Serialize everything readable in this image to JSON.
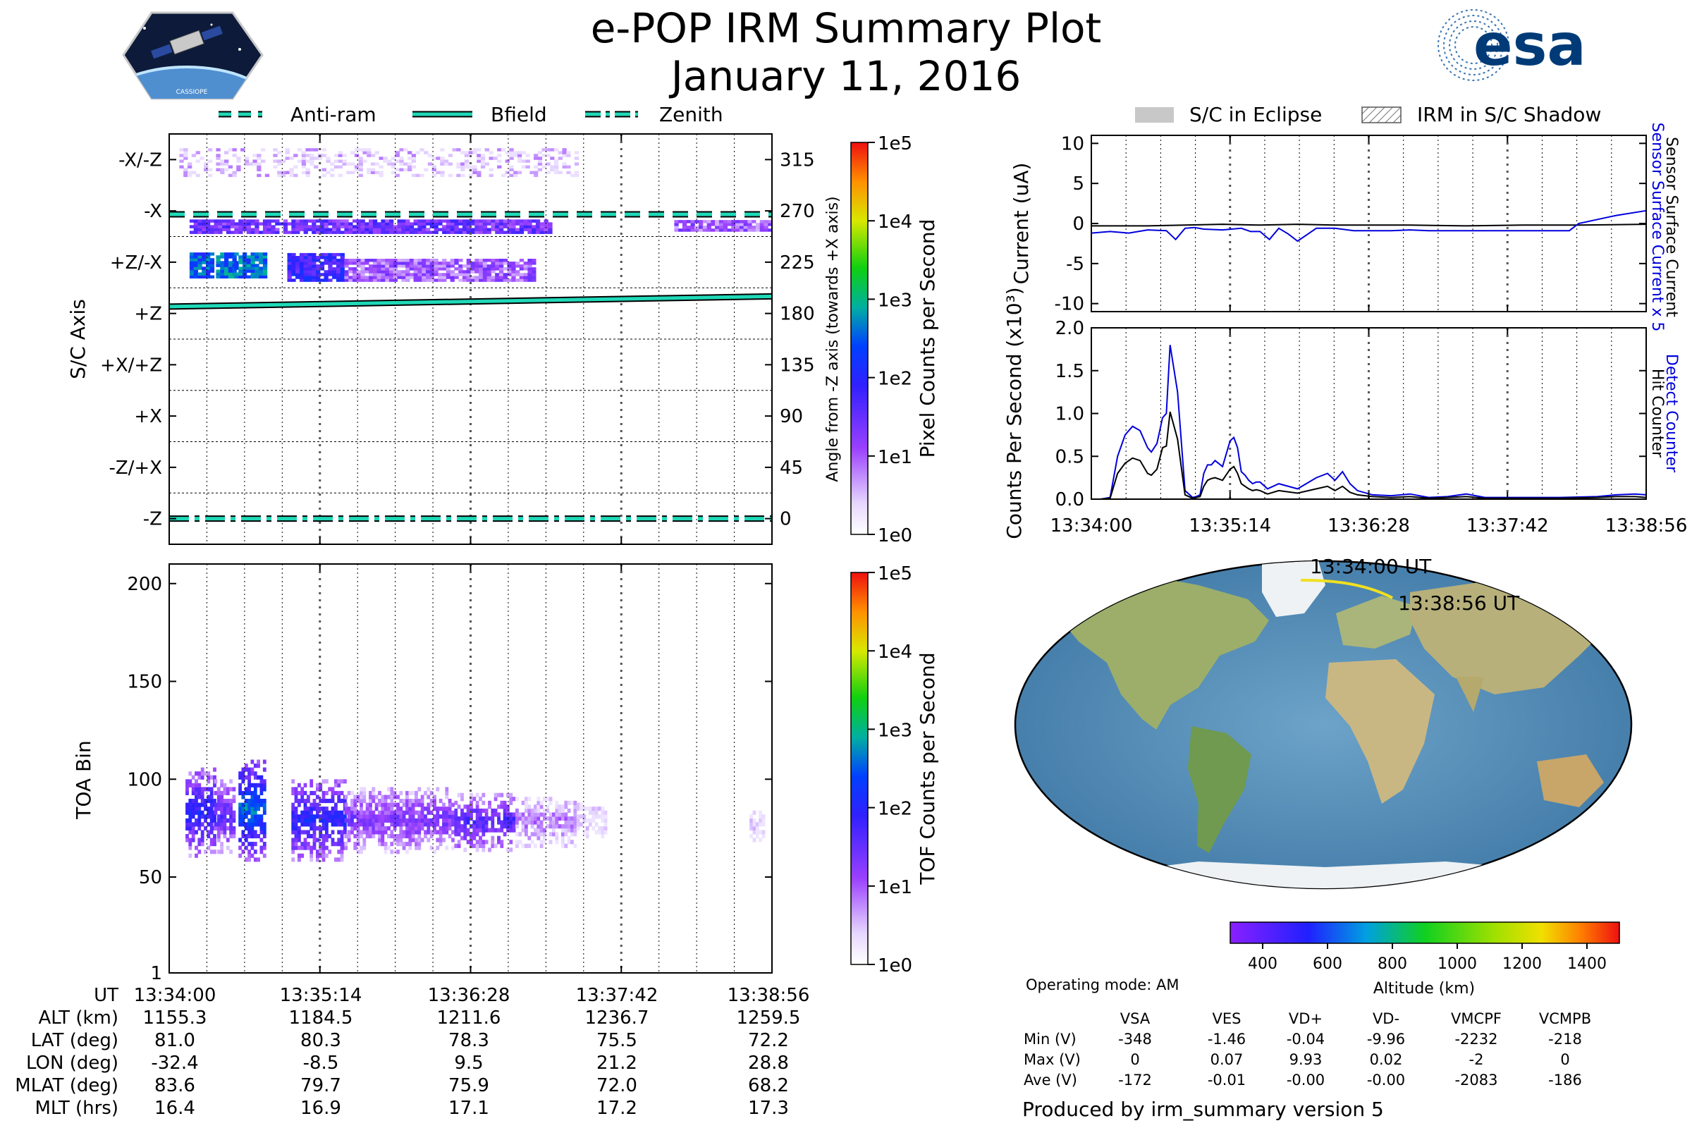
{
  "header": {
    "title": "e-POP IRM Summary Plot",
    "date": "January 11, 2016",
    "esa_logo_text": "esa",
    "cassiope_badge_text": "CASSIOPE"
  },
  "legend_top": {
    "antiram": "Anti-ram",
    "bfield": "Bfield",
    "zenith": "Zenith",
    "eclipse": "S/C in Eclipse",
    "shadow": "IRM in S/C Shadow"
  },
  "colors": {
    "antiram_line": "#1fd9b8",
    "bfield_line": "#1fd9b8",
    "zenith_line": "#1fd9b8",
    "current_black": "#000000",
    "current_blue": "#0000dd",
    "track": "#f0e020"
  },
  "chart_data": [
    {
      "id": "pixel-angle",
      "type": "heatmap",
      "ylabel_left": "S/C Axis",
      "ylabel_right": "Angle from -Z axis (towards +X axis)",
      "axis_labels": [
        "-X/-Z",
        "-X",
        "+Z/-X",
        "+Z",
        "+X/+Z",
        "+X",
        "-Z/+X",
        "-Z"
      ],
      "angle_ticks": [
        "315",
        "270",
        "225",
        "180",
        "135",
        "90",
        "45",
        "0"
      ],
      "angle_range": [
        -22.5,
        337.5
      ],
      "time_range_s": [
        0,
        296
      ],
      "colorbar": {
        "label": "Pixel Counts per Second",
        "scale": "log",
        "ticks": [
          "1e5",
          "1e4",
          "1e3",
          "1e2",
          "1e1",
          "1e0"
        ]
      },
      "antiram_angle": 267,
      "zenith_angle": 0,
      "bfield_angle": [
        186,
        195
      ],
      "blobs": [
        {
          "t0": 10,
          "t1": 188,
          "a0": 250,
          "a1": 262,
          "level": 1.4
        },
        {
          "t0": 248,
          "t1": 296,
          "a0": 252,
          "a1": 262,
          "level": 1.0
        },
        {
          "t0": 10,
          "t1": 22,
          "a0": 211,
          "a1": 232,
          "level": 2.4
        },
        {
          "t0": 23,
          "t1": 32,
          "a0": 211,
          "a1": 232,
          "level": 2.6
        },
        {
          "t0": 32,
          "t1": 47,
          "a0": 211,
          "a1": 232,
          "level": 2.5
        },
        {
          "t0": 58,
          "t1": 86,
          "a0": 208,
          "a1": 232,
          "level": 1.8
        },
        {
          "t0": 86,
          "t1": 180,
          "a0": 208,
          "a1": 228,
          "level": 1.0
        },
        {
          "t0": 5,
          "t1": 200,
          "a0": 300,
          "a1": 325,
          "level": 0.4
        }
      ]
    },
    {
      "id": "tof",
      "type": "heatmap",
      "ylabel": "TOA Bin",
      "y_ticks": [
        1,
        50,
        100,
        150,
        200
      ],
      "y_range": [
        1,
        210
      ],
      "time_range_s": [
        0,
        296
      ],
      "colorbar": {
        "label": "TOF Counts per Second",
        "scale": "log",
        "ticks": [
          "1e5",
          "1e4",
          "1e3",
          "1e2",
          "1e1",
          "1e0"
        ]
      },
      "blobs": [
        {
          "t0": 8,
          "t1": 22,
          "b0": 60,
          "b1": 105,
          "level": 1.7
        },
        {
          "t0": 22,
          "t1": 32,
          "b0": 62,
          "b1": 100,
          "level": 1.3
        },
        {
          "t0": 34,
          "t1": 47,
          "b0": 58,
          "b1": 110,
          "level": 2.2
        },
        {
          "t0": 60,
          "t1": 86,
          "b0": 58,
          "b1": 100,
          "level": 1.7
        },
        {
          "t0": 86,
          "t1": 140,
          "b0": 62,
          "b1": 95,
          "level": 1.1
        },
        {
          "t0": 140,
          "t1": 170,
          "b0": 63,
          "b1": 92,
          "level": 1.4
        },
        {
          "t0": 170,
          "t1": 200,
          "b0": 65,
          "b1": 90,
          "level": 0.7
        },
        {
          "t0": 200,
          "t1": 215,
          "b0": 70,
          "b1": 88,
          "level": 0.4
        },
        {
          "t0": 285,
          "t1": 292,
          "b0": 68,
          "b1": 84,
          "level": 0.3
        }
      ]
    },
    {
      "id": "current",
      "type": "line",
      "ylabel": "Current (uA)",
      "ylim": [
        -11,
        11
      ],
      "yticks": [
        10,
        5,
        0,
        -5,
        -10
      ],
      "time_range_s": [
        0,
        296
      ],
      "right_label_blue": "Sensor Surface Current x 5",
      "right_label_black": "Sensor Surface Current",
      "series": [
        {
          "color": "black",
          "x": [
            0,
            30,
            50,
            70,
            90,
            110,
            130,
            150,
            170,
            200,
            230,
            260,
            296
          ],
          "y": [
            -0.3,
            -0.3,
            -0.2,
            -0.1,
            -0.2,
            -0.1,
            -0.2,
            -0.2,
            -0.2,
            -0.3,
            -0.2,
            -0.2,
            -0.1
          ]
        },
        {
          "color": "blue",
          "x": [
            0,
            10,
            20,
            30,
            40,
            45,
            50,
            55,
            60,
            70,
            80,
            85,
            90,
            95,
            100,
            105,
            110,
            115,
            120,
            130,
            140,
            150,
            160,
            170,
            180,
            200,
            230,
            255,
            260,
            270,
            280,
            296
          ],
          "y": [
            -1.2,
            -1.0,
            -1.2,
            -0.8,
            -0.9,
            -2.0,
            -0.6,
            -0.5,
            -0.7,
            -0.8,
            -0.6,
            -1.0,
            -1.0,
            -2.0,
            -0.6,
            -1.3,
            -2.2,
            -1.4,
            -0.6,
            -0.6,
            -0.9,
            -0.9,
            -0.9,
            -0.8,
            -0.9,
            -0.9,
            -0.9,
            -0.9,
            0.0,
            0.5,
            1.0,
            1.6
          ]
        }
      ]
    },
    {
      "id": "counts",
      "type": "line",
      "ylabel": "Counts Per Second (x10³)",
      "ylim": [
        0,
        2.0
      ],
      "yticks": [
        "2.0",
        "1.5",
        "1.0",
        "0.5",
        "0.0"
      ],
      "x_tick_labels": [
        "13:34:00",
        "13:35:14",
        "13:36:28",
        "13:37:42",
        "13:38:56"
      ],
      "time_range_s": [
        0,
        296
      ],
      "right_label_blue": "Detect Counter",
      "right_label_black": "Hit Counter",
      "series": [
        {
          "color": "blue",
          "x": [
            0,
            5,
            10,
            14,
            18,
            22,
            26,
            30,
            32,
            35,
            38,
            40,
            42,
            46,
            50,
            54,
            56,
            58,
            60,
            62,
            64,
            66,
            70,
            74,
            76,
            78,
            80,
            82,
            84,
            86,
            88,
            90,
            94,
            100,
            110,
            120,
            126,
            130,
            134,
            138,
            142,
            150,
            160,
            170,
            180,
            190,
            200,
            210,
            230,
            250,
            270,
            280,
            290,
            296
          ],
          "y": [
            0,
            0,
            0.02,
            0.5,
            0.75,
            0.85,
            0.8,
            0.6,
            0.55,
            0.65,
            0.95,
            1.0,
            1.8,
            1.25,
            0.1,
            0.02,
            0.03,
            0.05,
            0.3,
            0.4,
            0.4,
            0.45,
            0.38,
            0.68,
            0.72,
            0.6,
            0.32,
            0.28,
            0.22,
            0.18,
            0.2,
            0.2,
            0.12,
            0.18,
            0.12,
            0.25,
            0.3,
            0.22,
            0.32,
            0.18,
            0.1,
            0.05,
            0.04,
            0.06,
            0.02,
            0.03,
            0.06,
            0.02,
            0.02,
            0.02,
            0.03,
            0.05,
            0.06,
            0.05
          ]
        },
        {
          "color": "black",
          "x": [
            0,
            5,
            10,
            14,
            18,
            22,
            26,
            30,
            32,
            35,
            38,
            40,
            42,
            46,
            50,
            54,
            56,
            58,
            60,
            62,
            64,
            66,
            70,
            74,
            76,
            78,
            80,
            82,
            84,
            86,
            88,
            90,
            94,
            100,
            110,
            120,
            126,
            130,
            134,
            138,
            142,
            150,
            160,
            170,
            180,
            190,
            200,
            210,
            230,
            250,
            270,
            280,
            290,
            296
          ],
          "y": [
            0,
            0,
            0.01,
            0.3,
            0.42,
            0.48,
            0.45,
            0.3,
            0.28,
            0.35,
            0.6,
            0.62,
            1.02,
            0.7,
            0.05,
            0.01,
            0.02,
            0.03,
            0.15,
            0.22,
            0.24,
            0.25,
            0.22,
            0.35,
            0.38,
            0.3,
            0.18,
            0.15,
            0.12,
            0.1,
            0.11,
            0.1,
            0.06,
            0.1,
            0.07,
            0.12,
            0.15,
            0.1,
            0.15,
            0.08,
            0.05,
            0.03,
            0.02,
            0.03,
            0.01,
            0.02,
            0.03,
            0.01,
            0.01,
            0.01,
            0.02,
            0.03,
            0.03,
            0.02
          ]
        }
      ]
    }
  ],
  "map": {
    "start_label": "13:34:00 UT",
    "end_label": "13:38:56 UT",
    "colorbar_ticks": [
      "400",
      "600",
      "800",
      "1000",
      "1200",
      "1400"
    ],
    "colorbar_label": "Altitude (km)",
    "altitude_range_km": [
      300,
      1500
    ]
  },
  "ephemeris": {
    "row_labels": [
      "UT",
      "ALT (km)",
      "LAT (deg)",
      "LON (deg)",
      "MLAT (deg)",
      "MLT (hrs)"
    ],
    "columns": [
      [
        "13:34:00",
        "1155.3",
        "81.0",
        "-32.4",
        "83.6",
        "16.4"
      ],
      [
        "13:35:14",
        "1184.5",
        "80.3",
        "-8.5",
        "79.7",
        "16.9"
      ],
      [
        "13:36:28",
        "1211.6",
        "78.3",
        "9.5",
        "75.9",
        "17.1"
      ],
      [
        "13:37:42",
        "1236.7",
        "75.5",
        "21.2",
        "72.0",
        "17.2"
      ],
      [
        "13:38:56",
        "1259.5",
        "72.2",
        "28.8",
        "68.2",
        "17.3"
      ]
    ]
  },
  "stats": {
    "operating_mode": "Operating mode: AM",
    "headers": [
      "VSA",
      "VES",
      "VD+",
      "VD-",
      "VMCPF",
      "VCMPB"
    ],
    "rows": [
      {
        "label": "Min (V)",
        "values": [
          "-348",
          "-1.46",
          "-0.04",
          "-9.96",
          "-2232",
          "-218"
        ]
      },
      {
        "label": "Max (V)",
        "values": [
          "0",
          "0.07",
          "9.93",
          "0.02",
          "-2",
          "0"
        ]
      },
      {
        "label": "Ave (V)",
        "values": [
          "-172",
          "-0.01",
          "-0.00",
          "-0.00",
          "-2083",
          "-186"
        ]
      }
    ],
    "produced_by": "Produced by irm_summary version 5"
  }
}
